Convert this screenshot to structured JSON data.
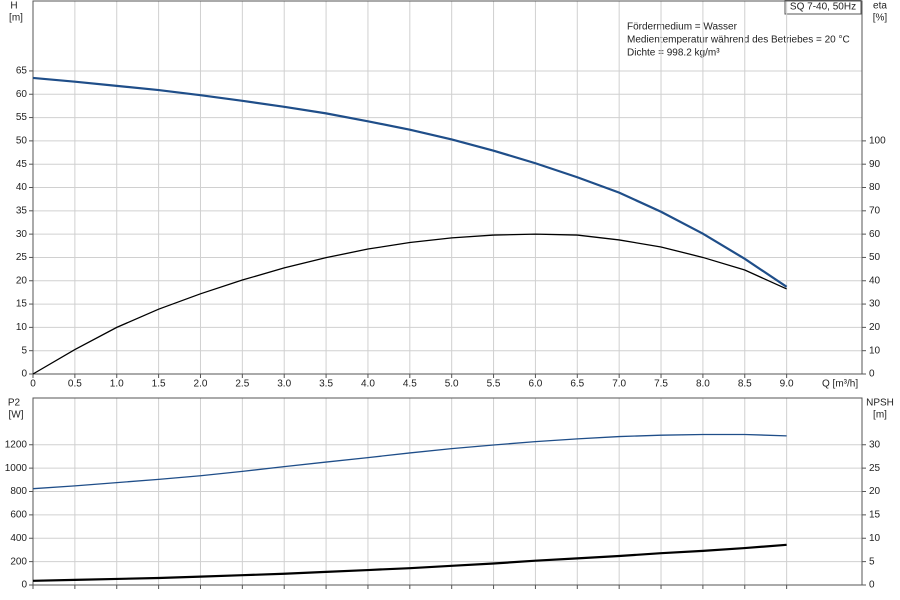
{
  "chart_data": [
    {
      "type": "line",
      "title": "SQ 7-40, 50Hz",
      "annotations": [
        "Fördermedium = Wasser",
        "Medientemperatur während des Betriebes = 20 °C",
        "Dichte = 998.2 kg/m³"
      ],
      "y_label": "H",
      "y_unit": "[m]",
      "y2_label": "eta",
      "y2_unit": "[%]",
      "x_label": "Q [m³/h]",
      "xlim": [
        0,
        9.9
      ],
      "xticks": [
        0,
        0.5,
        {
          "value": 1,
          "label": "1.0"
        },
        1.5,
        {
          "value": 2,
          "label": "2.0"
        },
        2.5,
        {
          "value": 3,
          "label": "3.0"
        },
        3.5,
        {
          "value": 4,
          "label": "4.0"
        },
        4.5,
        {
          "value": 5,
          "label": "5.0"
        },
        5.5,
        {
          "value": 6,
          "label": "6.0"
        },
        6.5,
        {
          "value": 7,
          "label": "7.0"
        },
        7.5,
        {
          "value": 8,
          "label": "8.0"
        },
        8.5,
        {
          "value": 9,
          "label": "9.0"
        }
      ],
      "ylim": [
        0,
        80
      ],
      "yticks": [
        0,
        5,
        10,
        15,
        20,
        25,
        30,
        35,
        40,
        45,
        50,
        55,
        60,
        65
      ],
      "y2lim": [
        0,
        160
      ],
      "y2ticks": [
        0,
        10,
        20,
        30,
        40,
        50,
        60,
        70,
        80,
        90,
        100
      ],
      "grid": true,
      "x": [
        0,
        0.5,
        1,
        1.5,
        2,
        2.5,
        3,
        3.5,
        4,
        4.5,
        5,
        5.5,
        6,
        6.5,
        7,
        7.5,
        8,
        8.5,
        9
      ],
      "series": [
        {
          "color": "#1f4e89",
          "line_width": 2.2,
          "values": [
            63.5,
            62.7,
            61.8,
            60.9,
            59.8,
            58.6,
            57.3,
            55.9,
            54.2,
            52.4,
            50.3,
            47.9,
            45.2,
            42.2,
            38.9,
            34.8,
            30.1,
            24.7,
            18.7
          ]
        },
        {
          "color": "#000000",
          "line_width": 1.3,
          "axis": "y2",
          "values": [
            0,
            10.5,
            20,
            27.8,
            34.4,
            40.3,
            45.5,
            49.9,
            53.6,
            56.4,
            58.4,
            59.6,
            60,
            59.6,
            57.5,
            54.5,
            50,
            44.6,
            36.5
          ]
        }
      ]
    },
    {
      "type": "line",
      "y_label": "P2",
      "y_unit": "[W]",
      "y2_label": "NPSH",
      "y2_unit": "[m]",
      "xlim": [
        0,
        9.9
      ],
      "xticks": [
        0,
        0.5,
        1,
        1.5,
        2,
        2.5,
        3,
        3.5,
        4,
        4.5,
        5,
        5.5,
        6,
        6.5,
        7,
        7.5,
        8,
        8.5,
        9
      ],
      "ylim": [
        0,
        1600
      ],
      "yticks": [
        0,
        200,
        400,
        600,
        800,
        1000,
        1200
      ],
      "y2lim": [
        0,
        40
      ],
      "y2ticks": [
        0,
        5,
        10,
        15,
        20,
        25,
        30
      ],
      "grid": true,
      "x": [
        0,
        0.5,
        1,
        1.5,
        2,
        2.5,
        3,
        3.5,
        4,
        4.5,
        5,
        5.5,
        6,
        6.5,
        7,
        7.5,
        8,
        8.5,
        9
      ],
      "series": [
        {
          "color": "#1f4e89",
          "line_width": 1.3,
          "values": [
            824,
            848,
            876,
            904,
            935,
            972,
            1013,
            1052,
            1090,
            1130,
            1167,
            1198,
            1227,
            1250,
            1270,
            1282,
            1288,
            1288,
            1276
          ]
        },
        {
          "color": "#000000",
          "line_width": 2.2,
          "axis": "y2",
          "values": [
            0.9,
            1.1,
            1.3,
            1.5,
            1.8,
            2.1,
            2.4,
            2.8,
            3.2,
            3.6,
            4.1,
            4.6,
            5.2,
            5.7,
            6.2,
            6.8,
            7.3,
            7.9,
            8.6
          ]
        }
      ]
    }
  ]
}
